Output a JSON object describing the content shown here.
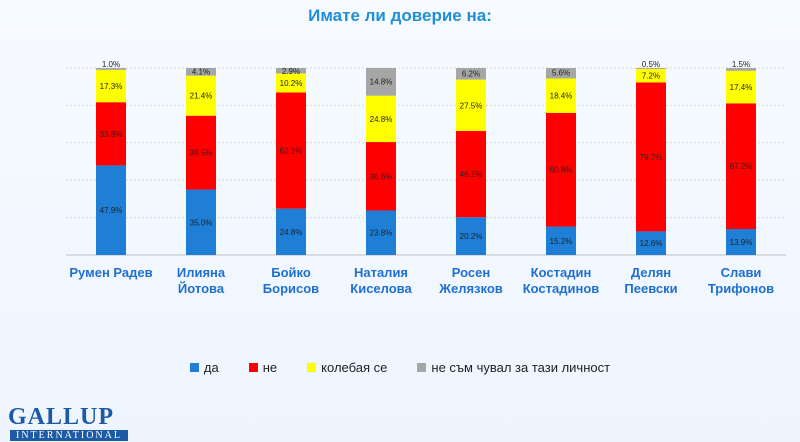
{
  "chart_data": {
    "type": "bar",
    "title": "Имате  ли доверие на:",
    "stacked": true,
    "categories": [
      "Румен Радев",
      "Илияна\nЙотова",
      "Бойко\nБорисов",
      "Наталия\nКиселова",
      "Росен\nЖелязков",
      "Костадин\nКостадинов",
      "Делян\nПеевски",
      "Слави\nТрифонов"
    ],
    "series": [
      {
        "name": "да",
        "color": "#1f7fd6",
        "values": [
          47.9,
          35.0,
          24.8,
          23.8,
          20.2,
          15.2,
          12.6,
          13.9
        ]
      },
      {
        "name": "не",
        "color": "#ff0000",
        "values": [
          33.8,
          39.5,
          62.1,
          36.6,
          46.1,
          60.8,
          79.7,
          67.2
        ]
      },
      {
        "name": "колебая се",
        "color": "#ffff00",
        "values": [
          17.3,
          21.4,
          10.2,
          24.8,
          27.5,
          18.4,
          7.2,
          17.4
        ]
      },
      {
        "name": "не съм чувал за тази личност",
        "color": "#a6a6a6",
        "values": [
          1.0,
          4.1,
          2.9,
          14.8,
          6.2,
          5.6,
          0.5,
          1.5
        ]
      }
    ],
    "value_labels": [
      [
        "47.9%",
        "35.0%",
        "24.8%",
        "23.8%",
        "20.2%",
        "15.2%",
        "12.6%",
        "13.9%"
      ],
      [
        "33.8%",
        "39.5%",
        "62.1%",
        "36.6%",
        "46.1%",
        "60.8%",
        "79.7%",
        "67.2%"
      ],
      [
        "17.3%",
        "21.4%",
        "10.2%",
        "24.8%",
        "27.5%",
        "18.4%",
        "7.2%",
        "17.4%"
      ],
      [
        "1.0%",
        "4.1%",
        "2.9%",
        "14.8%",
        "6.2%",
        "5.6%",
        "0.5%",
        "1.5%"
      ]
    ],
    "ylim": [
      0,
      100
    ],
    "grid": true,
    "legend_position": "bottom"
  },
  "logo": {
    "main": "GALLUP",
    "sub": "INTERNATIONAL"
  }
}
